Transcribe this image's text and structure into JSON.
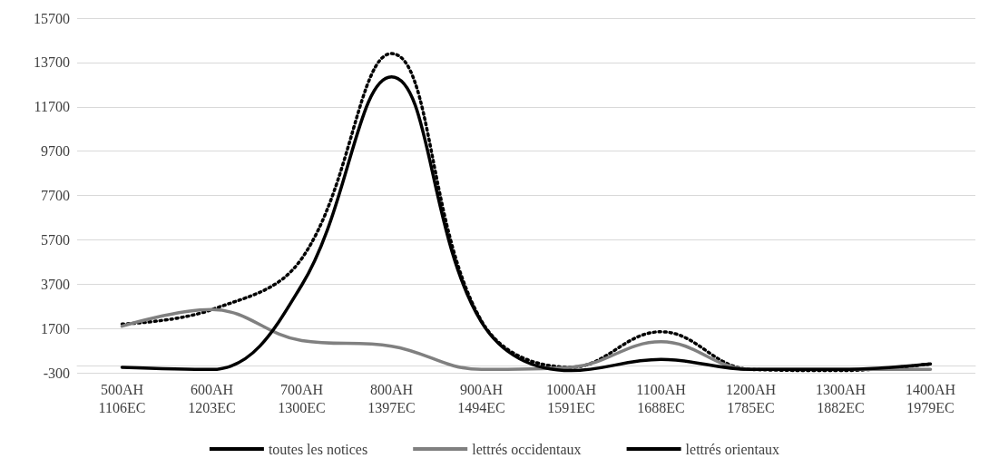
{
  "chart_data": {
    "type": "line",
    "categories": [
      "500AH\n1106EC",
      "600AH\n1203EC",
      "700AH\n1300EC",
      "800AH\n1397EC",
      "900AH\n1494EC",
      "1000AH\n1591EC",
      "1100AH\n1688EC",
      "1200AH\n1785EC",
      "1300AH\n1882EC",
      "1400AH\n1979EC"
    ],
    "series": [
      {
        "name": "toutes les notices",
        "color": "#000000",
        "line_style": "dotted",
        "values": [
          1900,
          2550,
          4850,
          14100,
          2050,
          -50,
          1550,
          -150,
          -200,
          100
        ]
      },
      {
        "name": "lettrés occidentaux",
        "color": "#808080",
        "line_style": "solid",
        "values": [
          1800,
          2550,
          1150,
          900,
          -150,
          -50,
          1100,
          -150,
          -150,
          -150
        ]
      },
      {
        "name": "lettrés orientaux",
        "color": "#000000",
        "line_style": "solid",
        "values": [
          -50,
          -150,
          3650,
          13050,
          2000,
          -200,
          300,
          -150,
          -150,
          100
        ]
      }
    ],
    "ylim": [
      -300,
      15700
    ],
    "yticks": [
      -300,
      1700,
      3700,
      5700,
      7700,
      9700,
      11700,
      13700,
      15700
    ],
    "grid": "y",
    "legend": "bottom",
    "marker": "none"
  }
}
